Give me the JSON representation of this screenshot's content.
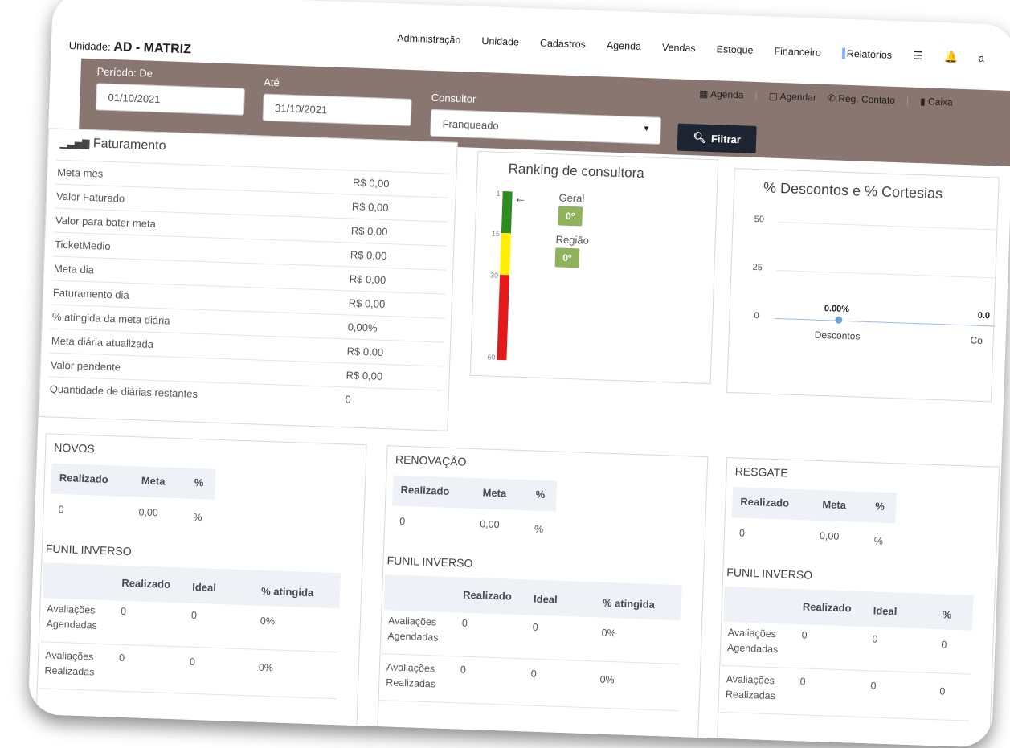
{
  "header": {
    "unit_label": "Unidade:",
    "unit_value": "AD - MATRIZ",
    "nav": [
      "Administração",
      "Unidade",
      "Cadastros",
      "Agenda",
      "Vendas",
      "Estoque",
      "Financeiro",
      "Relatórios"
    ],
    "nav_truncated": "a"
  },
  "filters": {
    "period_label": "Período: De",
    "period_from": "01/10/2021",
    "until_label": "Até",
    "period_to": "31/10/2021",
    "consultant_label": "Consultor",
    "consultant_value": "Franqueado",
    "filter_button": "Filtrar"
  },
  "quick_actions": {
    "agenda": "Agenda",
    "agendar": "Agendar",
    "reg_contato": "Reg. Contato",
    "caixa": "Caixa"
  },
  "faturamento": {
    "title": "Faturamento",
    "rows": [
      {
        "label": "Meta mês",
        "value": "R$ 0,00"
      },
      {
        "label": "Valor Faturado",
        "value": "R$ 0,00"
      },
      {
        "label": "Valor para bater meta",
        "value": "R$ 0,00"
      },
      {
        "label": "TicketMedio",
        "value": "R$ 0,00"
      },
      {
        "label": "Meta dia",
        "value": "R$ 0,00"
      },
      {
        "label": "Faturamento dia",
        "value": "R$ 0,00"
      },
      {
        "label": "% atingida da meta diária",
        "value": "0,00%"
      },
      {
        "label": "Meta diária atualizada",
        "value": "R$ 0,00"
      },
      {
        "label": "Valor pendente",
        "value": "R$ 0,00"
      },
      {
        "label": "Quantidade de diárias restantes",
        "value": "0"
      }
    ]
  },
  "ranking": {
    "title": "Ranking de consultora",
    "ticks": [
      "1",
      "15",
      "30",
      "60"
    ],
    "geral_label": "Geral",
    "geral_value": "0º",
    "regiao_label": "Região",
    "regiao_value": "0º",
    "colors": {
      "green": "#2e8b1e",
      "yellow": "#ffee00",
      "red": "#e5191b"
    }
  },
  "descontos": {
    "title": "% Descontos e % Cortesias",
    "y_ticks": [
      "50",
      "25",
      "0"
    ],
    "point_label": "0.00%",
    "point_label_2": "0.0",
    "x_label_1": "Descontos",
    "x_label_2": "Co"
  },
  "sections": [
    {
      "title": "NOVOS",
      "head": [
        "Realizado",
        "Meta",
        "%"
      ],
      "row": [
        "0",
        "0,00",
        "%"
      ],
      "funil_title": "FUNIL INVERSO",
      "funil_head": [
        "Realizado",
        "Ideal",
        "% atingida"
      ],
      "funil_rows": [
        {
          "label1": "Avaliações",
          "label2": "Agendadas",
          "realizado": "0",
          "ideal": "0",
          "pct": "0%"
        },
        {
          "label1": "Avaliações",
          "label2": "Realizadas",
          "realizado": "0",
          "ideal": "0",
          "pct": "0%"
        }
      ]
    },
    {
      "title": "RENOVAÇÃO",
      "head": [
        "Realizado",
        "Meta",
        "%"
      ],
      "row": [
        "0",
        "0,00",
        "%"
      ],
      "funil_title": "FUNIL INVERSO",
      "funil_head": [
        "Realizado",
        "Ideal",
        "% atingida"
      ],
      "funil_rows": [
        {
          "label1": "Avaliações",
          "label2": "Agendadas",
          "realizado": "0",
          "ideal": "0",
          "pct": "0%"
        },
        {
          "label1": "Avaliações",
          "label2": "Realizadas",
          "realizado": "0",
          "ideal": "0",
          "pct": "0%"
        }
      ]
    },
    {
      "title": "RESGATE",
      "head": [
        "Realizado",
        "Meta",
        "%"
      ],
      "row": [
        "0",
        "0,00",
        "%"
      ],
      "funil_title": "FUNIL INVERSO",
      "funil_head": [
        "Realizado",
        "Ideal",
        "%"
      ],
      "funil_rows": [
        {
          "label1": "Avaliações",
          "label2": "Agendadas",
          "realizado": "0",
          "ideal": "0",
          "pct": "0"
        },
        {
          "label1": "Avaliações",
          "label2": "Realizadas",
          "realizado": "0",
          "ideal": "0",
          "pct": "0"
        }
      ]
    }
  ]
}
